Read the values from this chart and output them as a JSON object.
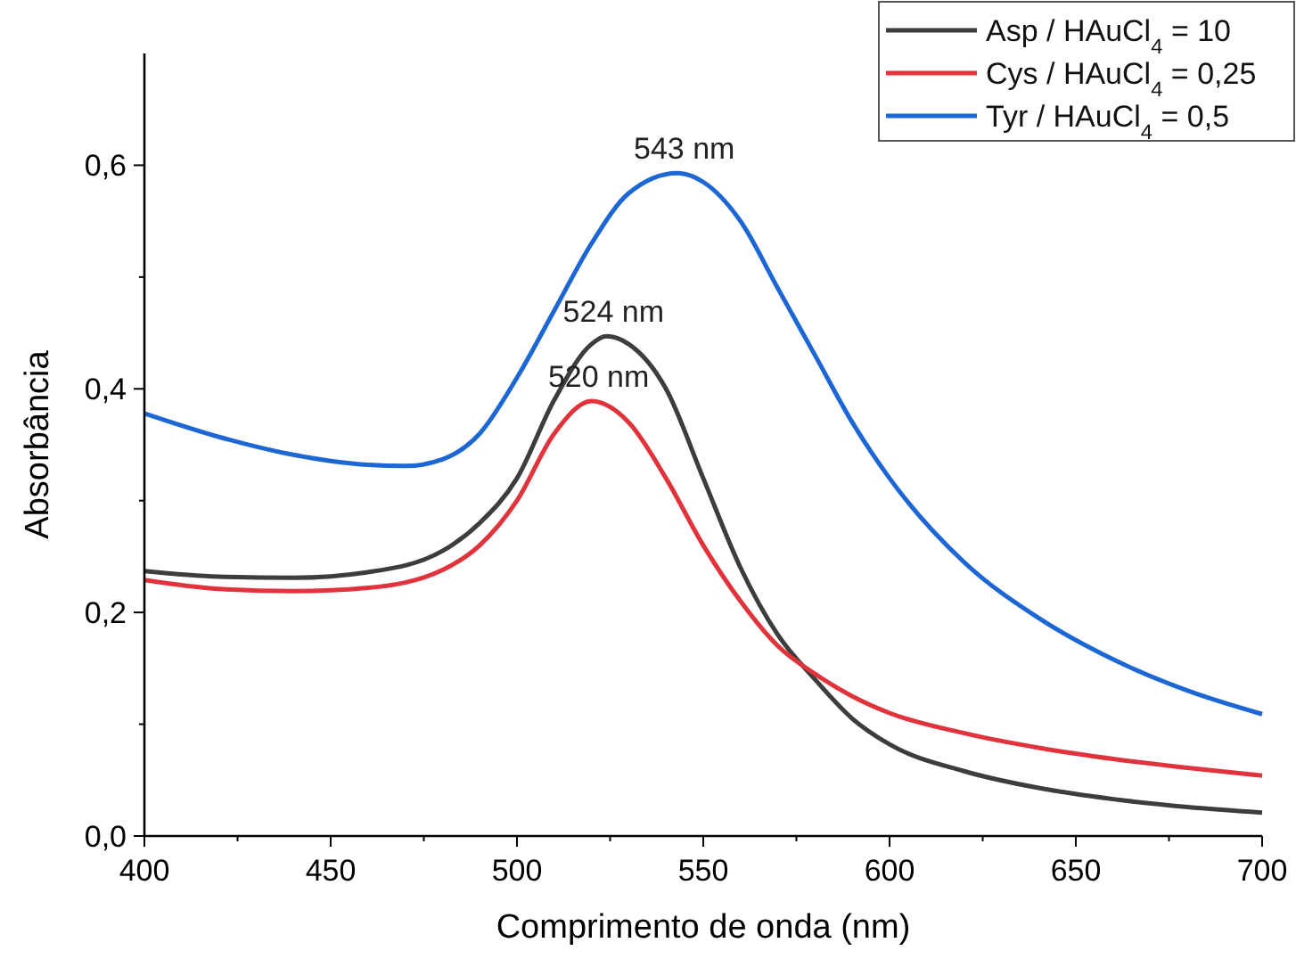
{
  "chart_data": {
    "type": "line",
    "xlabel": "Comprimento de onda (nm)",
    "ylabel": "Absorbância",
    "xlim": [
      400,
      700
    ],
    "ylim": [
      0,
      0.7
    ],
    "xticks": [
      400,
      {
        "value": 425,
        "label": null
      },
      450,
      {
        "value": 475,
        "label": null
      },
      500,
      {
        "value": 525,
        "label": null
      },
      550,
      {
        "value": 575,
        "label": null
      },
      600,
      {
        "value": 625,
        "label": null
      },
      650,
      {
        "value": 675,
        "label": null
      },
      700
    ],
    "yticks": [
      {
        "value": 0,
        "label": "0,0"
      },
      {
        "value": 0.1,
        "label": null
      },
      {
        "value": 0.2,
        "label": "0,2"
      },
      {
        "value": 0.3,
        "label": null
      },
      {
        "value": 0.4,
        "label": "0,4"
      },
      {
        "value": 0.5,
        "label": null
      },
      {
        "value": 0.6,
        "label": "0,6"
      }
    ],
    "grid": false,
    "legend": "top right",
    "line_style": "solid",
    "marker": "none",
    "x": [
      400,
      420,
      440,
      460,
      480,
      490,
      500,
      510,
      520,
      530,
      540,
      550,
      560,
      570,
      580,
      590,
      600,
      620,
      640,
      660,
      680,
      700
    ],
    "series": [
      {
        "name": "Asp / HAuCl$_{4}$ = 10",
        "color": "#3d3d3d",
        "x": [
          400,
          420,
          440,
          460,
          480,
          490,
          500,
          510,
          520,
          524,
          530,
          540,
          550,
          560,
          570,
          580,
          590,
          600,
          620,
          640,
          660,
          680,
          700
        ],
        "values": [
          0.237,
          0.232,
          0.231,
          0.236,
          0.255,
          0.28,
          0.32,
          0.39,
          0.44,
          0.447,
          0.44,
          0.4,
          0.32,
          0.24,
          0.18,
          0.14,
          0.105,
          0.082,
          0.058,
          0.043,
          0.033,
          0.026,
          0.021
        ]
      },
      {
        "name": "Cys / HAuCl$_{4}$ = 0,25",
        "color": "#e0333c",
        "values": [
          0.229,
          0.221,
          0.219,
          0.222,
          0.238,
          0.26,
          0.3,
          0.36,
          0.389,
          0.37,
          0.32,
          0.26,
          0.21,
          0.17,
          0.145,
          0.125,
          0.11,
          0.092,
          0.079,
          0.069,
          0.061,
          0.054
        ]
      },
      {
        "name": "Tyr / HAuCl$_{4}$ = 0,5",
        "color": "#1c67d4",
        "x": [
          400,
          420,
          440,
          460,
          470,
          480,
          490,
          500,
          510,
          520,
          530,
          543,
          550,
          560,
          570,
          580,
          590,
          600,
          620,
          640,
          660,
          680,
          700
        ],
        "values": [
          0.378,
          0.357,
          0.341,
          0.332,
          0.331,
          0.337,
          0.36,
          0.41,
          0.47,
          0.53,
          0.575,
          0.593,
          0.585,
          0.55,
          0.49,
          0.43,
          0.37,
          0.32,
          0.245,
          0.195,
          0.158,
          0.13,
          0.109
        ]
      }
    ],
    "annotations": [
      {
        "text": "543 nm",
        "x": 543,
        "y": 0.593
      },
      {
        "text": "524 nm",
        "x": 524,
        "y": 0.447
      },
      {
        "text": "520 nm",
        "x": 520,
        "y": 0.389
      }
    ]
  }
}
